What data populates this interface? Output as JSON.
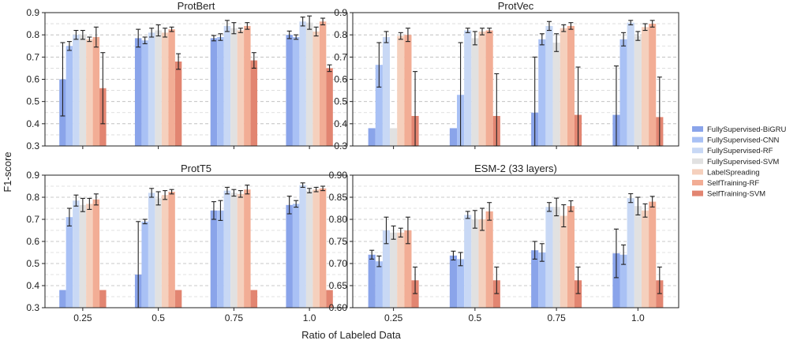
{
  "xlabel": "Ratio of Labeled Data",
  "ylabel": "F1-score",
  "legend": [
    {
      "label": "FullySupervised-BiGRU",
      "color": "#8aa4ea"
    },
    {
      "label": "FullySupervised-CNN",
      "color": "#a9c1f5"
    },
    {
      "label": "FullySupervised-RF",
      "color": "#c8d8f5"
    },
    {
      "label": "FullySupervised-SVM",
      "color": "#e1e1e1"
    },
    {
      "label": "LabelSpreading",
      "color": "#f5d0bd"
    },
    {
      "label": "SelfTraining-RF",
      "color": "#f2ad95"
    },
    {
      "label": "SelfTraining-SVM",
      "color": "#e28571"
    }
  ],
  "chart_data": [
    {
      "type": "bar",
      "title": "ProtBert",
      "categories": [
        "0.25",
        "0.5",
        "0.75",
        "1.0"
      ],
      "ylim": [
        0.3,
        0.9
      ],
      "yticks": [
        "0.3",
        "0.4",
        "0.5",
        "0.6",
        "0.7",
        "0.8",
        "0.9"
      ],
      "yticks_num": [
        0.3,
        0.4,
        0.5,
        0.6,
        0.7,
        0.8,
        0.9
      ],
      "show_xticks": false,
      "series": [
        {
          "name": "FullySupervised-BiGRU",
          "values": [
            0.6,
            0.785,
            0.785,
            0.8
          ],
          "errors": [
            0.165,
            0.04,
            0.012,
            0.017
          ]
        },
        {
          "name": "FullySupervised-CNN",
          "values": [
            0.75,
            0.775,
            0.79,
            0.79
          ],
          "errors": [
            0.02,
            0.015,
            0.015,
            0.01
          ]
        },
        {
          "name": "FullySupervised-RF",
          "values": [
            0.8,
            0.81,
            0.84,
            0.86
          ],
          "errors": [
            0.02,
            0.02,
            0.025,
            0.02
          ]
        },
        {
          "name": "FullySupervised-SVM",
          "values": [
            0.8,
            0.82,
            0.83,
            0.855
          ],
          "errors": [
            0.02,
            0.025,
            0.025,
            0.03
          ]
        },
        {
          "name": "LabelSpreading",
          "values": [
            0.78,
            0.81,
            0.82,
            0.815
          ],
          "errors": [
            0.01,
            0.02,
            0.01,
            0.02
          ]
        },
        {
          "name": "SelfTraining-RF",
          "values": [
            0.79,
            0.825,
            0.84,
            0.86
          ],
          "errors": [
            0.045,
            0.01,
            0.015,
            0.015
          ]
        },
        {
          "name": "SelfTraining-SVM",
          "values": [
            0.56,
            0.68,
            0.685,
            0.65
          ],
          "errors": [
            0.16,
            0.035,
            0.035,
            0.015
          ]
        }
      ]
    },
    {
      "type": "bar",
      "title": "ProtVec",
      "categories": [
        "0.25",
        "0.5",
        "0.75",
        "1.0"
      ],
      "ylim": [
        0.3,
        0.9
      ],
      "yticks": [
        "0.3",
        "0.4",
        "0.5",
        "0.6",
        "0.7",
        "0.8",
        "0.9"
      ],
      "yticks_num": [
        0.3,
        0.4,
        0.5,
        0.6,
        0.7,
        0.8,
        0.9
      ],
      "show_xticks": false,
      "series": [
        {
          "name": "FullySupervised-BiGRU",
          "values": [
            0.38,
            0.38,
            0.45,
            0.44
          ],
          "errors": [
            0.0,
            0.0,
            0.25,
            0.22
          ]
        },
        {
          "name": "FullySupervised-CNN",
          "values": [
            0.665,
            0.53,
            0.78,
            0.78
          ],
          "errors": [
            0.1,
            0.235,
            0.025,
            0.03
          ]
        },
        {
          "name": "FullySupervised-RF",
          "values": [
            0.79,
            0.82,
            0.84,
            0.855
          ],
          "errors": [
            0.025,
            0.01,
            0.02,
            0.01
          ]
        },
        {
          "name": "FullySupervised-SVM",
          "values": [
            0.38,
            0.785,
            0.765,
            0.795
          ],
          "errors": [
            0.0,
            0.03,
            0.04,
            0.02
          ]
        },
        {
          "name": "LabelSpreading",
          "values": [
            0.795,
            0.815,
            0.83,
            0.835
          ],
          "errors": [
            0.015,
            0.015,
            0.015,
            0.015
          ]
        },
        {
          "name": "SelfTraining-RF",
          "values": [
            0.8,
            0.82,
            0.84,
            0.85
          ],
          "errors": [
            0.03,
            0.01,
            0.015,
            0.015
          ]
        },
        {
          "name": "SelfTraining-SVM",
          "values": [
            0.435,
            0.435,
            0.44,
            0.43
          ],
          "errors": [
            0.2,
            0.19,
            0.215,
            0.18
          ]
        }
      ]
    },
    {
      "type": "bar",
      "title": "ProtT5",
      "categories": [
        "0.25",
        "0.5",
        "0.75",
        "1.0"
      ],
      "ylim": [
        0.3,
        0.9
      ],
      "yticks": [
        "0.3",
        "0.4",
        "0.5",
        "0.6",
        "0.7",
        "0.8",
        "0.9"
      ],
      "yticks_num": [
        0.3,
        0.4,
        0.5,
        0.6,
        0.7,
        0.8,
        0.9
      ],
      "show_xticks": true,
      "series": [
        {
          "name": "FullySupervised-BiGRU",
          "values": [
            0.38,
            0.45,
            0.74,
            0.765
          ],
          "errors": [
            0.0,
            0.24,
            0.04,
            0.04
          ]
        },
        {
          "name": "FullySupervised-CNN",
          "values": [
            0.71,
            0.69,
            0.74,
            0.77
          ],
          "errors": [
            0.04,
            0.01,
            0.045,
            0.015
          ]
        },
        {
          "name": "FullySupervised-RF",
          "values": [
            0.785,
            0.82,
            0.83,
            0.855
          ],
          "errors": [
            0.025,
            0.02,
            0.015,
            0.01
          ]
        },
        {
          "name": "FullySupervised-SVM",
          "values": [
            0.765,
            0.795,
            0.82,
            0.83
          ],
          "errors": [
            0.03,
            0.03,
            0.015,
            0.01
          ]
        },
        {
          "name": "LabelSpreading",
          "values": [
            0.77,
            0.81,
            0.815,
            0.835
          ],
          "errors": [
            0.025,
            0.02,
            0.015,
            0.01
          ]
        },
        {
          "name": "SelfTraining-RF",
          "values": [
            0.79,
            0.825,
            0.835,
            0.84
          ],
          "errors": [
            0.025,
            0.01,
            0.02,
            0.01
          ]
        },
        {
          "name": "SelfTraining-SVM",
          "values": [
            0.38,
            0.38,
            0.38,
            0.38
          ],
          "errors": [
            0.0,
            0.0,
            0.0,
            0.0
          ]
        }
      ]
    },
    {
      "type": "bar",
      "title": "ESM-2 (33 layers)",
      "categories": [
        "0.25",
        "0.5",
        "0.75",
        "1.0"
      ],
      "ylim": [
        0.6,
        0.9
      ],
      "yticks": [
        "0.60",
        "0.65",
        "0.70",
        "0.75",
        "0.80",
        "0.85",
        "0.90"
      ],
      "yticks_num": [
        0.6,
        0.65,
        0.7,
        0.75,
        0.8,
        0.85,
        0.9
      ],
      "show_xticks": true,
      "series": [
        {
          "name": "FullySupervised-BiGRU",
          "values": [
            0.72,
            0.718,
            0.73,
            0.723
          ],
          "errors": [
            0.01,
            0.01,
            0.02,
            0.055
          ]
        },
        {
          "name": "FullySupervised-CNN",
          "values": [
            0.705,
            0.71,
            0.725,
            0.72
          ],
          "errors": [
            0.012,
            0.015,
            0.02,
            0.022
          ]
        },
        {
          "name": "FullySupervised-RF",
          "values": [
            0.775,
            0.81,
            0.828,
            0.848
          ],
          "errors": [
            0.03,
            0.008,
            0.01,
            0.01
          ]
        },
        {
          "name": "FullySupervised-SVM",
          "values": [
            0.77,
            0.8,
            0.828,
            0.83
          ],
          "errors": [
            0.015,
            0.02,
            0.02,
            0.02
          ]
        },
        {
          "name": "LabelSpreading",
          "values": [
            0.77,
            0.8,
            0.808,
            0.82
          ],
          "errors": [
            0.01,
            0.025,
            0.025,
            0.015
          ]
        },
        {
          "name": "SelfTraining-RF",
          "values": [
            0.775,
            0.818,
            0.83,
            0.84
          ],
          "errors": [
            0.03,
            0.02,
            0.012,
            0.012
          ]
        },
        {
          "name": "SelfTraining-SVM",
          "values": [
            0.662,
            0.662,
            0.662,
            0.662
          ],
          "errors": [
            0.03,
            0.03,
            0.03,
            0.03
          ]
        }
      ]
    }
  ]
}
